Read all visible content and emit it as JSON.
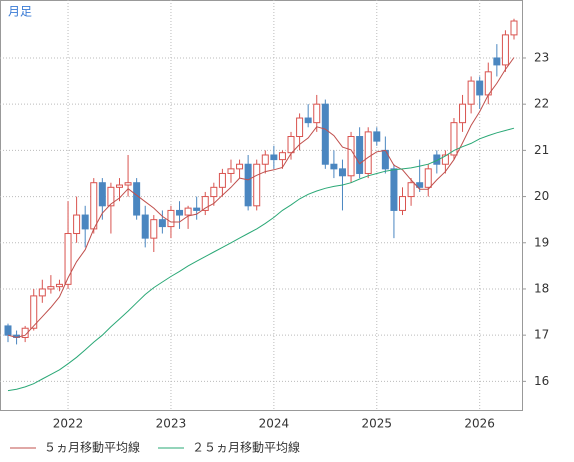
{
  "chart_data": {
    "type": "candlestick",
    "label": "月足",
    "categories": [
      null,
      null,
      null,
      null,
      null,
      null,
      null,
      "2022",
      null,
      null,
      null,
      null,
      null,
      null,
      null,
      null,
      null,
      null,
      null,
      "2023",
      null,
      null,
      null,
      null,
      null,
      null,
      null,
      null,
      null,
      null,
      null,
      "2024",
      null,
      null,
      null,
      null,
      null,
      null,
      null,
      null,
      null,
      null,
      null,
      "2025",
      null,
      null,
      null,
      null,
      null,
      null,
      null,
      null,
      null,
      null,
      null,
      "2026",
      null,
      null,
      null,
      null
    ],
    "open": [
      17.2,
      17.0,
      16.95,
      17.15,
      17.85,
      18.0,
      18.05,
      18.1,
      19.2,
      19.6,
      19.3,
      20.3,
      19.8,
      20.2,
      20.25,
      20.3,
      19.6,
      19.1,
      19.5,
      19.35,
      19.7,
      19.6,
      19.75,
      19.7,
      20.0,
      20.2,
      20.5,
      20.6,
      20.7,
      19.8,
      20.7,
      20.9,
      20.8,
      20.95,
      21.3,
      21.7,
      21.6,
      22.0,
      20.7,
      20.6,
      20.45,
      21.3,
      20.5,
      21.4,
      21.0,
      20.6,
      19.7,
      20.0,
      20.3,
      20.2,
      20.9,
      20.7,
      20.9,
      21.6,
      22.0,
      22.5,
      22.2,
      23.0,
      22.85,
      23.5
    ],
    "high": [
      17.25,
      17.1,
      17.2,
      18.0,
      18.2,
      18.3,
      18.2,
      19.9,
      20.0,
      19.8,
      20.4,
      20.4,
      20.3,
      20.4,
      20.9,
      20.4,
      19.8,
      19.6,
      19.7,
      19.8,
      19.9,
      19.8,
      20.0,
      20.1,
      20.3,
      20.6,
      20.8,
      20.8,
      20.9,
      20.8,
      21.0,
      21.1,
      21.0,
      21.4,
      21.8,
      22.0,
      22.2,
      22.1,
      21.0,
      20.8,
      21.4,
      21.5,
      21.5,
      21.5,
      21.3,
      20.7,
      20.2,
      20.4,
      20.8,
      20.7,
      21.0,
      21.0,
      21.7,
      22.2,
      22.6,
      22.6,
      22.9,
      23.3,
      23.6,
      23.85
    ],
    "low": [
      16.85,
      16.8,
      16.85,
      17.1,
      17.7,
      17.9,
      17.95,
      18.0,
      19.0,
      18.9,
      19.2,
      19.5,
      19.2,
      19.9,
      20.0,
      19.5,
      18.9,
      18.8,
      19.2,
      19.1,
      19.3,
      19.3,
      19.5,
      19.6,
      19.8,
      20.0,
      20.3,
      20.4,
      19.7,
      19.7,
      20.5,
      20.6,
      20.6,
      20.8,
      21.0,
      21.5,
      21.4,
      20.6,
      20.4,
      19.7,
      20.3,
      20.4,
      20.4,
      21.1,
      20.5,
      19.1,
      19.6,
      19.8,
      20.1,
      20.0,
      20.5,
      20.5,
      20.8,
      21.4,
      21.8,
      21.9,
      22.0,
      22.6,
      22.7,
      23.4
    ],
    "close": [
      17.0,
      16.95,
      17.15,
      17.85,
      18.0,
      18.05,
      18.1,
      19.2,
      19.6,
      19.3,
      20.3,
      19.8,
      20.2,
      20.25,
      20.3,
      19.6,
      19.1,
      19.5,
      19.35,
      19.7,
      19.6,
      19.75,
      19.7,
      20.0,
      20.2,
      20.5,
      20.6,
      20.7,
      19.8,
      20.7,
      20.9,
      20.8,
      20.95,
      21.3,
      21.7,
      21.6,
      22.0,
      20.7,
      20.6,
      20.45,
      21.3,
      20.5,
      21.4,
      21.2,
      20.6,
      19.7,
      20.0,
      20.3,
      20.2,
      20.6,
      20.7,
      20.9,
      21.6,
      22.0,
      22.5,
      22.2,
      22.7,
      22.85,
      23.5,
      23.8
    ],
    "up_color": "#d9534f",
    "down_color": "#4a86c0",
    "series": [
      {
        "name": "５ヵ月移動平均線",
        "color": "#c0504d",
        "values": [
          17.0,
          16.95,
          17.0,
          17.2,
          17.4,
          17.6,
          17.83,
          18.24,
          18.59,
          18.85,
          19.3,
          19.64,
          19.84,
          19.97,
          20.17,
          20.03,
          19.89,
          19.75,
          19.57,
          19.45,
          19.45,
          19.58,
          19.62,
          19.75,
          19.85,
          20.03,
          20.2,
          20.4,
          20.36,
          20.46,
          20.54,
          20.58,
          20.63,
          20.93,
          21.13,
          21.27,
          21.51,
          21.46,
          21.32,
          21.07,
          21.01,
          20.71,
          20.85,
          20.97,
          21.0,
          20.68,
          20.58,
          20.36,
          20.16,
          20.16,
          20.36,
          20.54,
          20.8,
          21.16,
          21.54,
          21.84,
          22.2,
          22.45,
          22.75,
          23.01
        ]
      },
      {
        "name": "２５ヵ月移動平均線",
        "color": "#2aa876",
        "values": [
          15.8,
          15.83,
          15.88,
          15.95,
          16.05,
          16.15,
          16.25,
          16.38,
          16.52,
          16.68,
          16.85,
          17.0,
          17.18,
          17.35,
          17.52,
          17.7,
          17.88,
          18.03,
          18.15,
          18.27,
          18.38,
          18.5,
          18.6,
          18.7,
          18.8,
          18.9,
          19.0,
          19.1,
          19.2,
          19.3,
          19.42,
          19.55,
          19.7,
          19.82,
          19.95,
          20.05,
          20.12,
          20.18,
          20.22,
          20.25,
          20.3,
          20.38,
          20.45,
          20.5,
          20.55,
          20.58,
          20.6,
          20.62,
          20.66,
          20.7,
          20.78,
          20.88,
          21.0,
          21.08,
          21.15,
          21.25,
          21.32,
          21.38,
          21.43,
          21.48
        ]
      }
    ],
    "ylim": [
      15.38,
      24.255
    ],
    "yticks": [
      16,
      17,
      18,
      19,
      20,
      21,
      22,
      23
    ],
    "grid": true
  }
}
